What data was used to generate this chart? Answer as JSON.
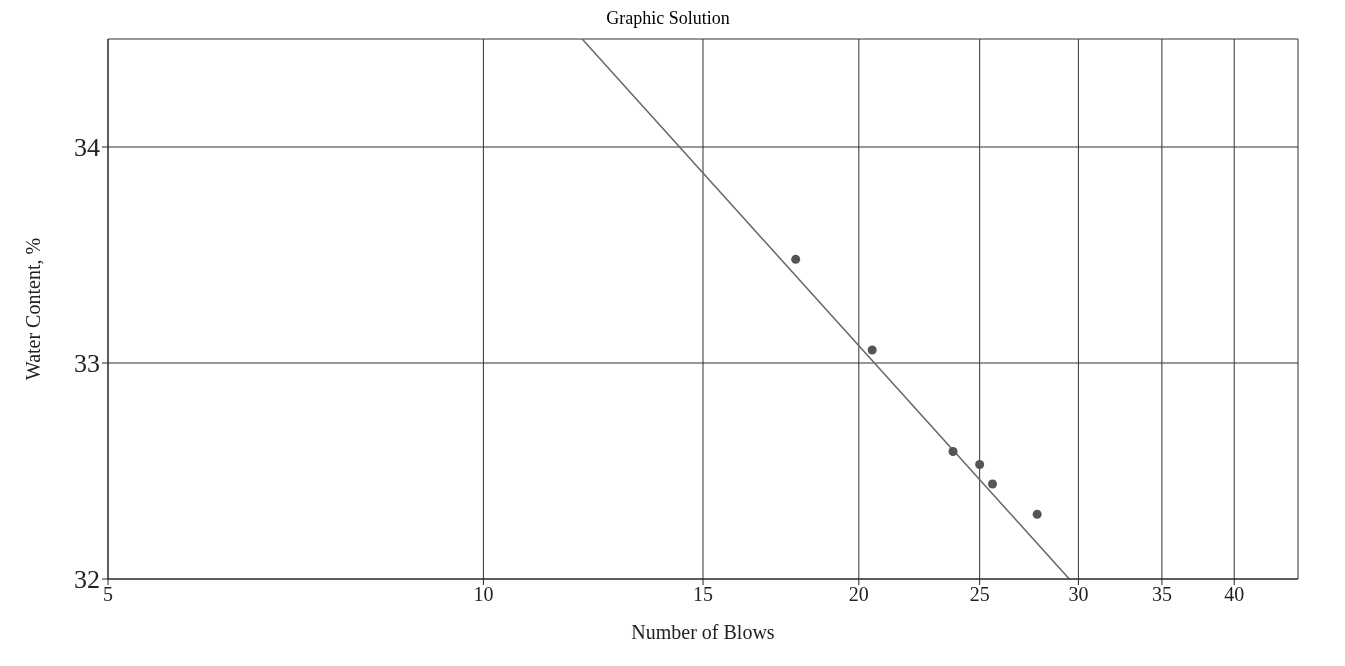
{
  "chart_data": {
    "type": "scatter",
    "title": "Graphic Solution",
    "xlabel": "Number of Blows",
    "ylabel": "Water Content, %",
    "log": "x",
    "xlim": [
      5,
      45
    ],
    "xticks": [
      5,
      10,
      15,
      20,
      25,
      30,
      35,
      40
    ],
    "ylim": [
      32,
      34.5
    ],
    "yticks": [
      32,
      33,
      34
    ],
    "grid": true,
    "series": [
      {
        "marker": "circle",
        "color": "#555555",
        "x": [
          17.8,
          20.5,
          23.8,
          25,
          25.6,
          27.8
        ],
        "values": [
          33.48,
          33.06,
          32.59,
          32.53,
          32.44,
          32.3
        ]
      },
      {
        "type": "line",
        "color": "#666666",
        "x": [
          12,
          29.5
        ],
        "values": [
          34.5,
          32
        ]
      }
    ]
  }
}
